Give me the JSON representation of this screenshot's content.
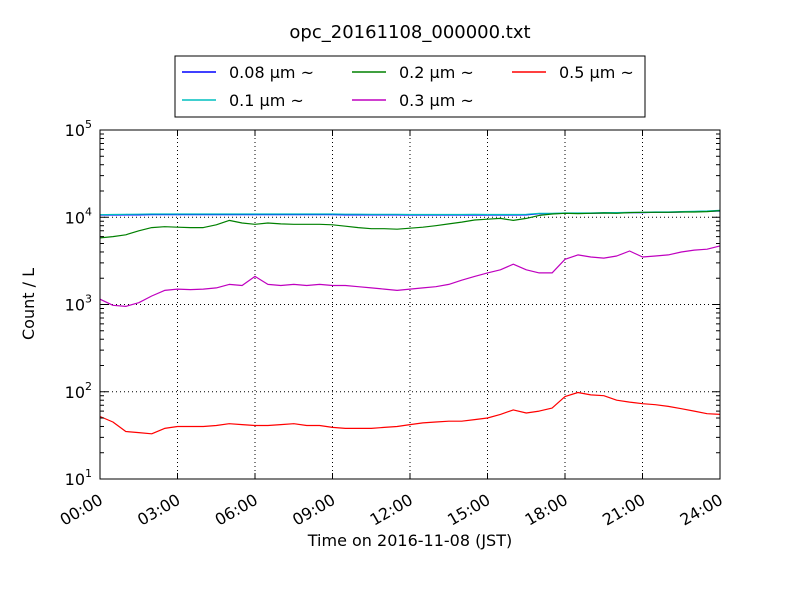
{
  "chart_data": {
    "type": "line",
    "title": "opc_20161108_000000.txt",
    "xlabel": "Time on 2016-11-08 (JST)",
    "ylabel": "Count / L",
    "xlim": [
      "2016-11-08 00:00",
      "2016-11-09 00:00"
    ],
    "ylim": [
      10,
      100000
    ],
    "yscale": "log",
    "grid": true,
    "legend_position": "top-center",
    "x_tick_labels": [
      "00:00",
      "03:00",
      "06:00",
      "09:00",
      "12:00",
      "15:00",
      "18:00",
      "21:00",
      "24:00"
    ],
    "y_tick_labels": [
      {
        "base": "10",
        "exp": "1"
      },
      {
        "base": "10",
        "exp": "2"
      },
      {
        "base": "10",
        "exp": "3"
      },
      {
        "base": "10",
        "exp": "4"
      },
      {
        "base": "10",
        "exp": "5"
      }
    ],
    "x": [
      "00:00",
      "00:30",
      "01:00",
      "01:30",
      "02:00",
      "02:30",
      "03:00",
      "03:30",
      "04:00",
      "04:30",
      "05:00",
      "05:30",
      "06:00",
      "06:30",
      "07:00",
      "07:30",
      "08:00",
      "08:30",
      "09:00",
      "09:30",
      "10:00",
      "10:30",
      "11:00",
      "11:30",
      "12:00",
      "12:30",
      "13:00",
      "13:30",
      "14:00",
      "14:30",
      "15:00",
      "15:30",
      "16:00",
      "16:30",
      "17:00",
      "17:30",
      "18:00",
      "18:30",
      "19:00",
      "19:30",
      "20:00",
      "20:30",
      "21:00",
      "21:30",
      "22:00",
      "22:30",
      "23:00",
      "23:30",
      "24:00"
    ],
    "series": [
      {
        "name": "0.08 μm ~",
        "color": "#0000ff",
        "values": [
          10600,
          10600,
          10650,
          10650,
          10700,
          10700,
          10700,
          10700,
          10700,
          10700,
          10700,
          10700,
          10700,
          10700,
          10700,
          10700,
          10700,
          10700,
          10700,
          10650,
          10650,
          10650,
          10650,
          10650,
          10600,
          10600,
          10600,
          10600,
          10600,
          10600,
          10600,
          10600,
          10600,
          10650,
          11000,
          11000,
          11100,
          11100,
          11100,
          11200,
          11200,
          11300,
          11300,
          11400,
          11400,
          11500,
          11600,
          11700,
          11800
        ]
      },
      {
        "name": "0.1 μm ~",
        "color": "#00bfbf",
        "values": [
          10700,
          10750,
          10800,
          10850,
          10900,
          10900,
          10900,
          10900,
          10900,
          10900,
          10900,
          10900,
          10900,
          10900,
          10900,
          10900,
          10900,
          10900,
          10900,
          10850,
          10850,
          10800,
          10800,
          10800,
          10750,
          10750,
          10750,
          10750,
          10750,
          10800,
          10750,
          10750,
          10750,
          10800,
          11100,
          11100,
          11200,
          11200,
          11200,
          11300,
          11300,
          11400,
          11400,
          11500,
          11500,
          11600,
          11700,
          11800,
          12000
        ]
      },
      {
        "name": "0.2 μm ~",
        "color": "#008000",
        "values": [
          5800,
          6000,
          6300,
          7000,
          7600,
          7800,
          7700,
          7600,
          7600,
          8200,
          9200,
          8600,
          8300,
          8600,
          8400,
          8300,
          8300,
          8300,
          8200,
          7900,
          7600,
          7400,
          7400,
          7300,
          7500,
          7700,
          8000,
          8400,
          8800,
          9300,
          9500,
          9700,
          9200,
          9700,
          10500,
          10900,
          11100,
          11000,
          11100,
          11200,
          11100,
          11300,
          11400,
          11400,
          11400,
          11500,
          11500,
          11600,
          11900
        ]
      },
      {
        "name": "0.3 μm ~",
        "color": "#bf00bf",
        "values": [
          1150,
          980,
          950,
          1050,
          1250,
          1450,
          1500,
          1480,
          1500,
          1550,
          1700,
          1650,
          2100,
          1700,
          1650,
          1700,
          1650,
          1700,
          1650,
          1650,
          1600,
          1550,
          1500,
          1450,
          1500,
          1550,
          1600,
          1700,
          1900,
          2100,
          2300,
          2500,
          2900,
          2500,
          2300,
          2300,
          3300,
          3700,
          3500,
          3400,
          3600,
          4100,
          3500,
          3600,
          3700,
          4000,
          4200,
          4300,
          4700
        ]
      },
      {
        "name": "0.5 μm ~",
        "color": "#ff0000",
        "values": [
          52,
          45,
          35,
          34,
          33,
          38,
          40,
          40,
          40,
          41,
          43,
          42,
          41,
          41,
          42,
          43,
          41,
          41,
          39,
          38,
          38,
          38,
          39,
          40,
          42,
          44,
          45,
          46,
          46,
          48,
          50,
          55,
          62,
          57,
          60,
          65,
          88,
          98,
          92,
          90,
          80,
          76,
          73,
          71,
          68,
          64,
          60,
          56,
          55
        ]
      }
    ]
  }
}
